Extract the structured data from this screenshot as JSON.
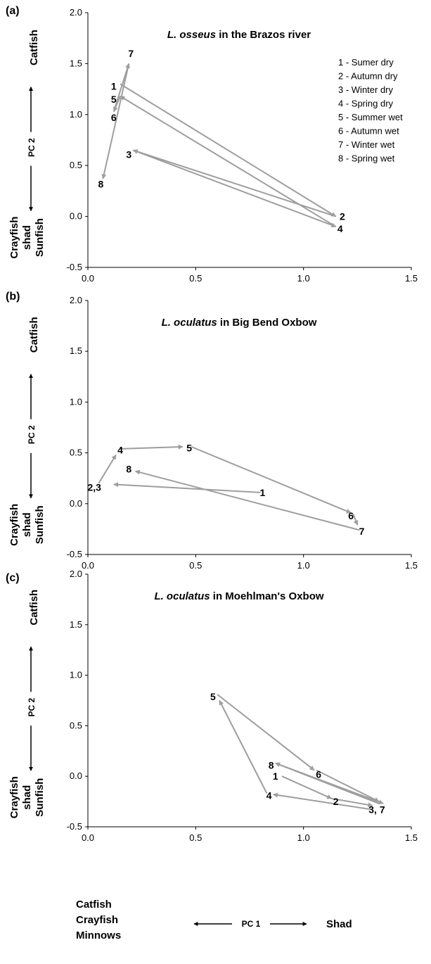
{
  "colors": {
    "arrow": "#9e9e9e",
    "axis": "#000000",
    "text": "#000000"
  },
  "legend": [
    "1 - Sumer dry",
    "2 - Autumn dry",
    "3 - Winter dry",
    "4 - Spring dry",
    "5 - Summer wet",
    "6  - Autumn wet",
    "7 - Winter wet",
    "8 - Spring wet"
  ],
  "y_axis": {
    "pc": "PC 2",
    "top_group": [
      "Catfish"
    ],
    "bottom_group": [
      "Crayfish",
      "shad",
      "Sunfish"
    ]
  },
  "x_axis": {
    "pc": "PC 1",
    "left_group": [
      "Catfish",
      "Crayfish",
      "Minnows"
    ],
    "right_group": [
      "Shad"
    ]
  },
  "chart_data": [
    {
      "type": "scatter",
      "panel": "(a)",
      "title_species": "L. osseus",
      "title_rest": " in the Brazos river",
      "xlim": [
        0,
        1.5
      ],
      "ylim": [
        -0.5,
        2.0
      ],
      "xticks": [
        "0.0",
        "0.5",
        "1.0",
        "1.5"
      ],
      "yticks": [
        "-0.5",
        "0.0",
        "0.5",
        "1.0",
        "1.5",
        "2.0"
      ],
      "points": [
        {
          "label": "1",
          "x": 0.15,
          "y": 1.3
        },
        {
          "label": "2",
          "x": 1.15,
          "y": 0.0
        },
        {
          "label": "3",
          "x": 0.21,
          "y": 0.65
        },
        {
          "label": "4",
          "x": 1.15,
          "y": -0.1
        },
        {
          "label": "5",
          "x": 0.15,
          "y": 1.18
        },
        {
          "label": "6",
          "x": 0.12,
          "y": 1.03
        },
        {
          "label": "7",
          "x": 0.19,
          "y": 1.5
        },
        {
          "label": "8",
          "x": 0.07,
          "y": 0.37
        }
      ],
      "label_positions": [
        {
          "text": "7",
          "x": 0.2,
          "y": 1.6
        },
        {
          "text": "1",
          "x": 0.12,
          "y": 1.28
        },
        {
          "text": "5",
          "x": 0.12,
          "y": 1.15
        },
        {
          "text": "6",
          "x": 0.12,
          "y": 0.97
        },
        {
          "text": "3",
          "x": 0.19,
          "y": 0.61
        },
        {
          "text": "8",
          "x": 0.06,
          "y": 0.32
        },
        {
          "text": "2",
          "x": 1.18,
          "y": 0.0
        },
        {
          "text": "4",
          "x": 1.17,
          "y": -0.12
        }
      ],
      "arrows": [
        [
          0.15,
          1.3,
          1.15,
          0.0
        ],
        [
          1.15,
          0.0,
          0.21,
          0.65
        ],
        [
          0.21,
          0.65,
          1.15,
          -0.1
        ],
        [
          1.15,
          -0.1,
          0.15,
          1.18
        ],
        [
          0.15,
          1.18,
          0.12,
          1.03
        ],
        [
          0.12,
          1.03,
          0.19,
          1.5
        ],
        [
          0.19,
          1.5,
          0.07,
          0.37
        ]
      ]
    },
    {
      "type": "scatter",
      "panel": "(b)",
      "title_species": "L. oculatus",
      "title_rest": " in Big Bend Oxbow",
      "xlim": [
        0,
        1.5
      ],
      "ylim": [
        -0.5,
        2.0
      ],
      "xticks": [
        "0.0",
        "0.5",
        "1.0",
        "1.5"
      ],
      "yticks": [
        "-0.5",
        "0.0",
        "0.5",
        "1.0",
        "1.5",
        "2.0"
      ],
      "points": [
        {
          "label": "1",
          "x": 0.8,
          "y": 0.11
        },
        {
          "label": "2,3",
          "x": 0.05,
          "y": 0.2
        },
        {
          "label": "4",
          "x": 0.13,
          "y": 0.53
        },
        {
          "label": "5",
          "x": 0.45,
          "y": 0.56
        },
        {
          "label": "6",
          "x": 1.23,
          "y": -0.1
        },
        {
          "label": "7",
          "x": 1.26,
          "y": -0.26
        },
        {
          "label": "8",
          "x": 0.21,
          "y": 0.32
        }
      ],
      "label_positions": [
        {
          "text": "1",
          "x": 0.81,
          "y": 0.11
        },
        {
          "text": "2,3",
          "x": 0.03,
          "y": 0.16
        },
        {
          "text": "4",
          "x": 0.15,
          "y": 0.53
        },
        {
          "text": "5",
          "x": 0.47,
          "y": 0.55
        },
        {
          "text": "6",
          "x": 1.22,
          "y": -0.12
        },
        {
          "text": "7",
          "x": 1.27,
          "y": -0.27
        },
        {
          "text": "8",
          "x": 0.19,
          "y": 0.34
        }
      ],
      "arrows": [
        [
          0.8,
          0.11,
          0.12,
          0.19
        ],
        [
          0.05,
          0.2,
          0.13,
          0.48
        ],
        [
          0.15,
          0.54,
          0.44,
          0.56
        ],
        [
          0.48,
          0.56,
          1.22,
          -0.09
        ],
        [
          1.23,
          -0.1,
          1.25,
          -0.21
        ],
        [
          1.26,
          -0.26,
          0.22,
          0.32
        ]
      ]
    },
    {
      "type": "scatter",
      "panel": "(c)",
      "title_species": "L. oculatus",
      "title_rest": " in Moehlman's Oxbow",
      "xlim": [
        0,
        1.5
      ],
      "ylim": [
        -0.5,
        2.0
      ],
      "xticks": [
        "0.0",
        "0.5",
        "1.0",
        "1.5"
      ],
      "yticks": [
        "-0.5",
        "0.0",
        "0.5",
        "1.0",
        "1.5",
        "2.0"
      ],
      "points": [
        {
          "label": "1",
          "x": 0.9,
          "y": 0.0
        },
        {
          "label": "2",
          "x": 1.12,
          "y": -0.22
        },
        {
          "label": "3, 7",
          "x": 1.35,
          "y": -0.3
        },
        {
          "label": "4",
          "x": 0.85,
          "y": -0.18
        },
        {
          "label": "5",
          "x": 0.59,
          "y": 0.8
        },
        {
          "label": "6",
          "x": 1.06,
          "y": 0.05
        },
        {
          "label": "8",
          "x": 0.86,
          "y": 0.12
        }
      ],
      "label_positions": [
        {
          "text": "1",
          "x": 0.87,
          "y": 0.0
        },
        {
          "text": "2",
          "x": 1.15,
          "y": -0.25
        },
        {
          "text": "3, 7",
          "x": 1.34,
          "y": -0.33
        },
        {
          "text": "4",
          "x": 0.84,
          "y": -0.19
        },
        {
          "text": "5",
          "x": 0.58,
          "y": 0.79
        },
        {
          "text": "6",
          "x": 1.07,
          "y": 0.02
        },
        {
          "text": "8",
          "x": 0.85,
          "y": 0.11
        }
      ],
      "arrows": [
        [
          0.9,
          0.0,
          1.13,
          -0.22
        ],
        [
          1.13,
          -0.22,
          1.32,
          -0.29
        ],
        [
          1.32,
          -0.33,
          0.86,
          -0.18
        ],
        [
          0.83,
          -0.17,
          0.61,
          0.75
        ],
        [
          0.6,
          0.81,
          1.05,
          0.06
        ],
        [
          1.06,
          0.06,
          1.35,
          -0.25
        ],
        [
          1.35,
          -0.27,
          0.87,
          0.13
        ],
        [
          0.87,
          0.13,
          1.37,
          -0.27
        ]
      ]
    }
  ]
}
